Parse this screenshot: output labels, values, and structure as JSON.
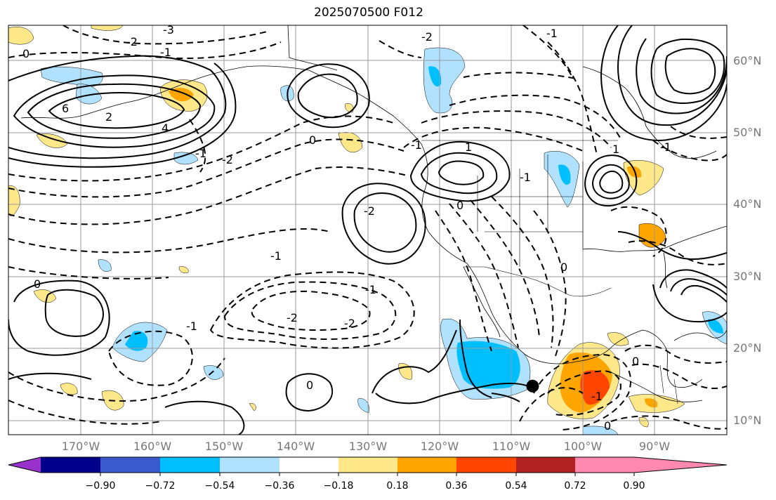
{
  "title": "2025070500 F012",
  "map": {
    "projection": "cylindrical lat-lon",
    "lon_range": [
      -180,
      -80
    ],
    "lat_range": [
      8,
      65
    ],
    "grid": true,
    "lat_labels": [
      "60°N",
      "50°N",
      "40°N",
      "30°N",
      "20°N",
      "10°N"
    ],
    "lon_labels": [
      "170°W",
      "160°W",
      "150°W",
      "140°W",
      "130°W",
      "120°W",
      "110°W",
      "100°W",
      "90°W"
    ],
    "contour_labels": [
      "-3",
      "-2",
      "-1",
      "0",
      "2",
      "4",
      "6",
      "-2",
      "-1",
      "0",
      "-1",
      "-2",
      "-2",
      "-1",
      "0",
      "0",
      "-1",
      "1",
      "-2",
      "-1",
      "0",
      "-1",
      "-1",
      "-2",
      "0",
      "-1",
      "-1",
      "0",
      "1",
      "0"
    ],
    "marker": {
      "lon": -107,
      "lat": 14.8,
      "color": "#000000"
    }
  },
  "colorbar": {
    "tick_labels": [
      "−0.90",
      "−0.72",
      "−0.54",
      "−0.36",
      "−0.18",
      "0.18",
      "0.36",
      "0.54",
      "0.72",
      "0.90"
    ],
    "colors": [
      "#9932cc",
      "#00008b",
      "#3a5bd0",
      "#00bfff",
      "#b0e2ff",
      "#ffffff",
      "#ffe88a",
      "#ffa500",
      "#ff4500",
      "#b22222",
      "#ff89b0"
    ]
  }
}
